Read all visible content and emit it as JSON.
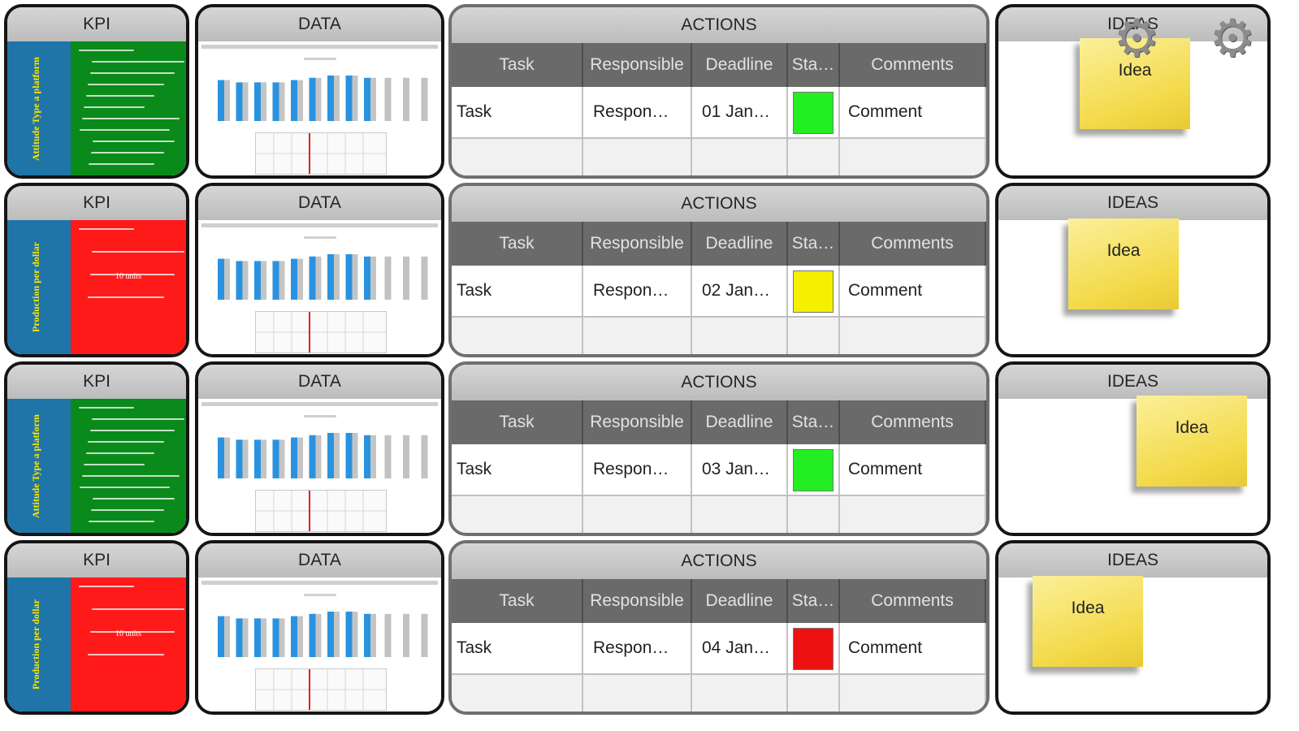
{
  "rows": [
    {
      "kpi": {
        "title": "KPI",
        "color": "#0a8a1a",
        "side_text": "Attitude Type a platform",
        "center_label": ""
      },
      "data": {
        "title": "DATA"
      },
      "actions": {
        "title": "ACTIONS",
        "task": "Task",
        "responsible": "Respon…",
        "deadline": "01 Jan…",
        "status_color": "#22ee22",
        "comment": "Comment"
      },
      "ideas": {
        "title": "IDEAS",
        "note": "Idea"
      }
    },
    {
      "kpi": {
        "title": "KPI",
        "color": "#ff1a1a",
        "side_text": "Production per dollar",
        "center_label": "10 units"
      },
      "data": {
        "title": "DATA"
      },
      "actions": {
        "title": "ACTIONS",
        "task": "Task",
        "responsible": "Respon…",
        "deadline": "02 Jan…",
        "status_color": "#f5ef00",
        "comment": "Comment"
      },
      "ideas": {
        "title": "IDEAS",
        "note": "Idea"
      }
    },
    {
      "kpi": {
        "title": "KPI",
        "color": "#0a8a1a",
        "side_text": "Attitude Type a platform",
        "center_label": ""
      },
      "data": {
        "title": "DATA"
      },
      "actions": {
        "title": "ACTIONS",
        "task": "Task",
        "responsible": "Respon…",
        "deadline": "03 Jan…",
        "status_color": "#22ee22",
        "comment": "Comment"
      },
      "ideas": {
        "title": "IDEAS",
        "note": "Idea"
      }
    },
    {
      "kpi": {
        "title": "KPI",
        "color": "#ff1a1a",
        "side_text": "Production per dollar",
        "center_label": "10 units"
      },
      "data": {
        "title": "DATA"
      },
      "actions": {
        "title": "ACTIONS",
        "task": "Task",
        "responsible": "Respon…",
        "deadline": "04 Jan…",
        "status_color": "#ee1111",
        "comment": "Comment"
      },
      "ideas": {
        "title": "IDEAS",
        "note": "Idea"
      }
    }
  ],
  "actions_columns": [
    "Task",
    "Responsible",
    "Deadline",
    "Sta…",
    "Comments"
  ],
  "mini_chart": {
    "values": [
      0.9,
      0.85,
      0.85,
      0.85,
      0.9,
      0.95,
      1.0,
      1.0,
      0.95,
      0.95,
      0.95,
      0.95
    ],
    "highlighted": [
      0,
      1,
      2,
      3,
      4,
      5,
      6,
      7,
      8
    ]
  },
  "icons": [
    "gear-icon",
    "gear-icon"
  ]
}
